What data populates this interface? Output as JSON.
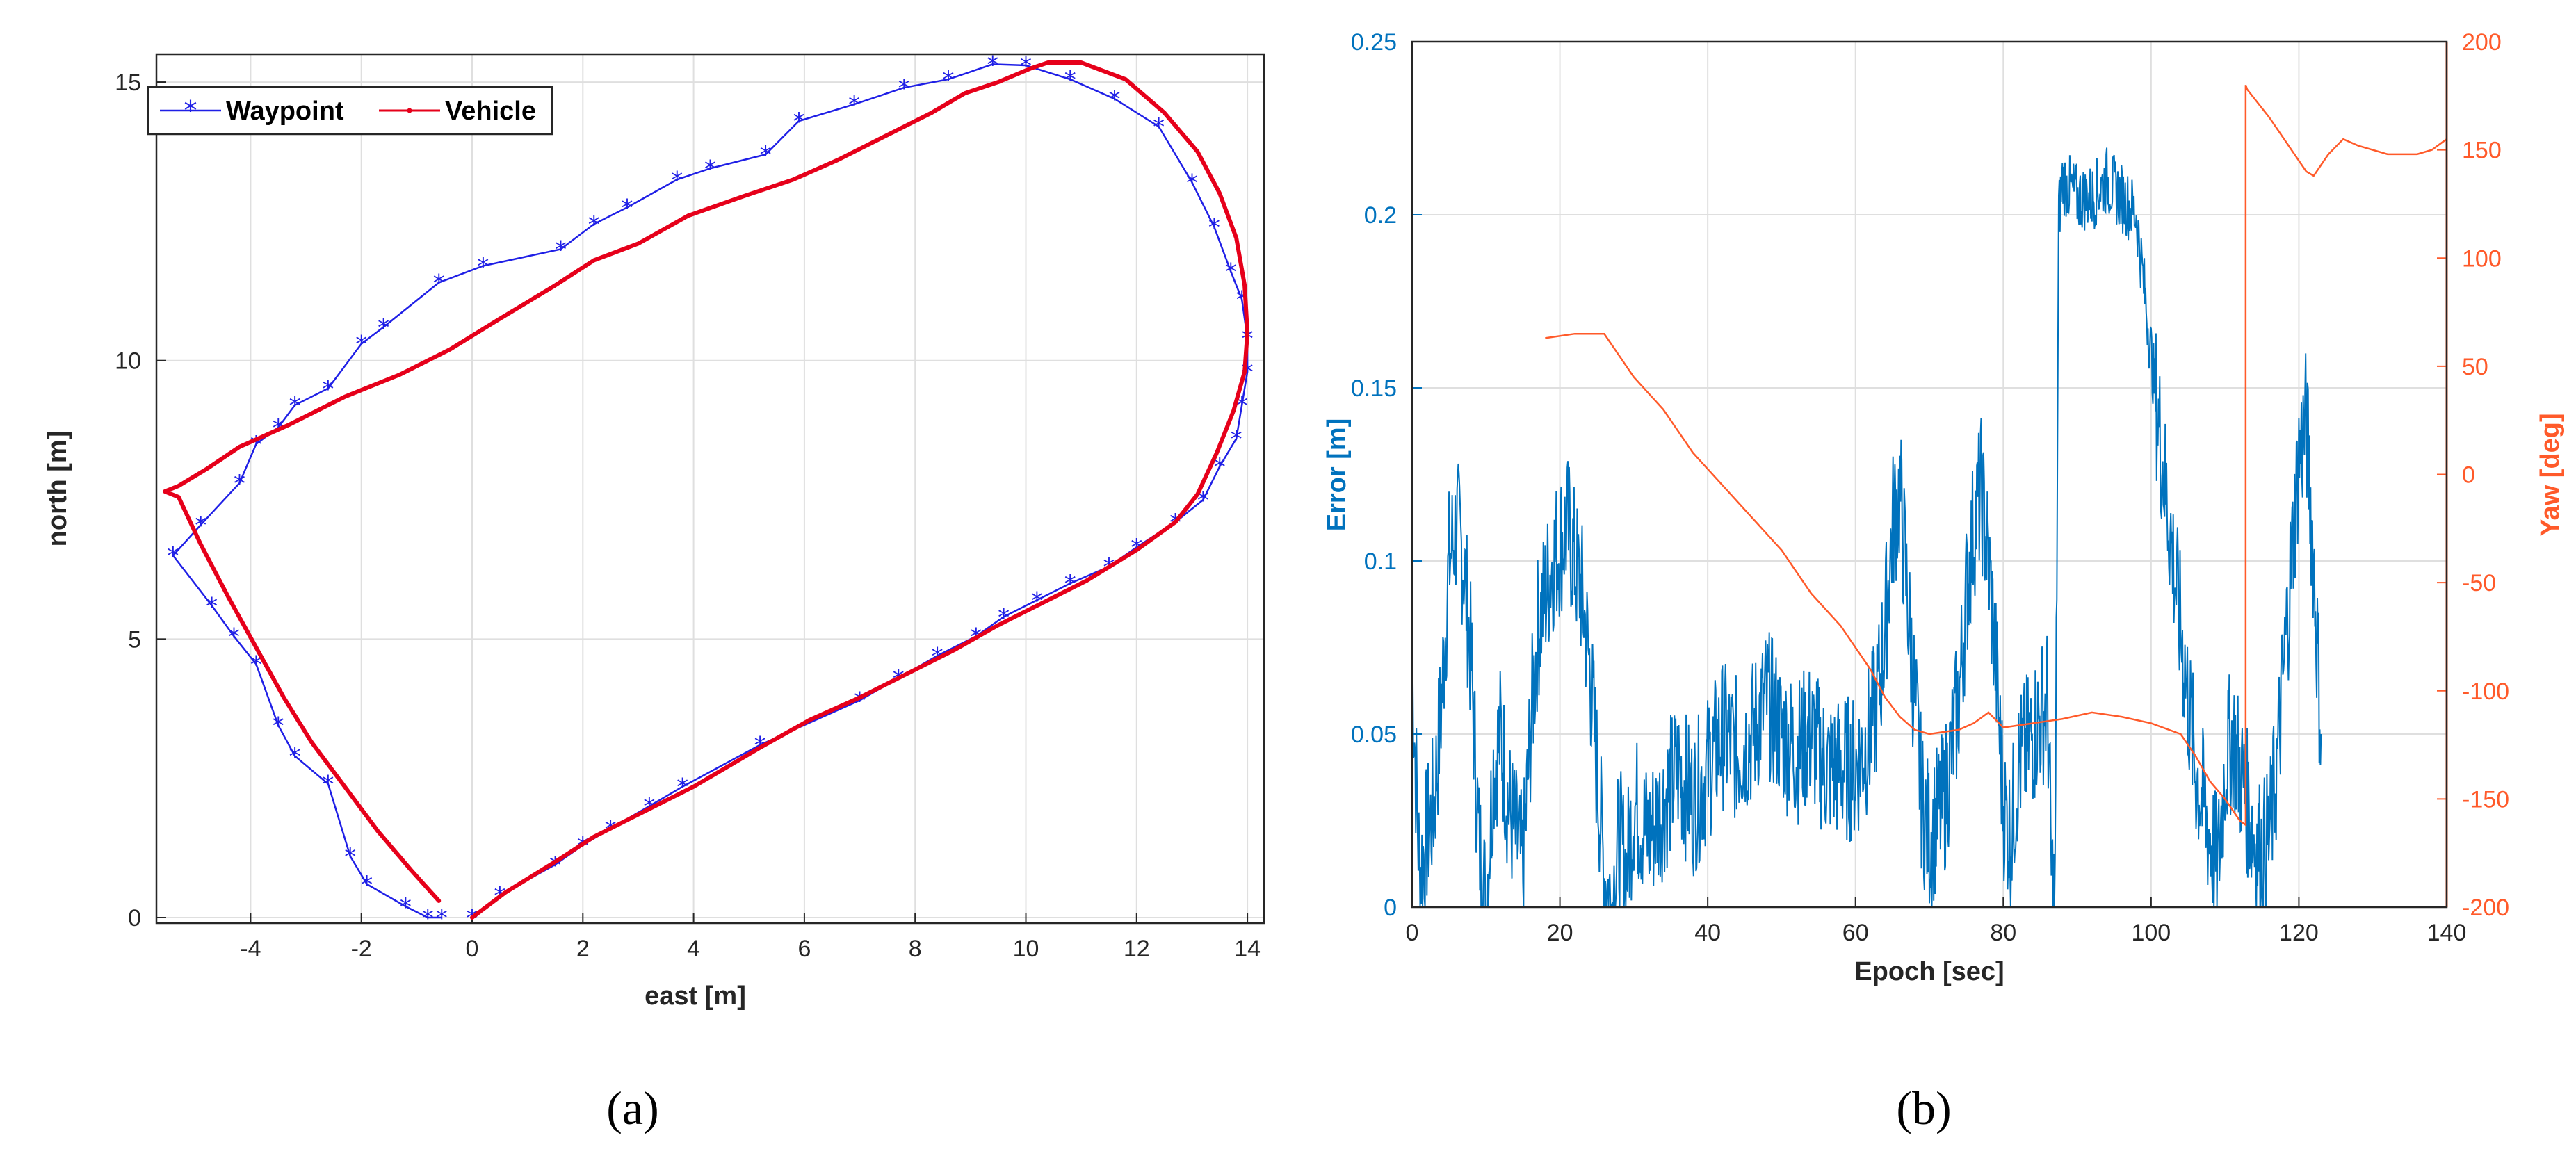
{
  "chart_data": [
    {
      "type": "line",
      "panel": "a",
      "caption": "(a)",
      "xlabel": "east [m]",
      "ylabel": "north [m]",
      "xlim": [
        -5.7,
        14.3
      ],
      "ylim": [
        -0.1,
        15.5
      ],
      "xticks": [
        -4,
        -2,
        0,
        2,
        4,
        6,
        8,
        10,
        12,
        14
      ],
      "yticks": [
        0,
        5,
        10,
        15
      ],
      "grid": true,
      "legend": {
        "placement": "top-left",
        "entries": [
          "Waypoint",
          "Vehicle"
        ]
      },
      "colors": {
        "waypoint": "#1f1fe6",
        "vehicle": "#e6001a"
      },
      "series": [
        {
          "name": "Waypoint",
          "x": [
            0.0,
            0.5,
            1.5,
            2.0,
            2.5,
            3.2,
            3.8,
            5.2,
            7.0,
            7.7,
            8.4,
            9.1,
            9.6,
            10.2,
            10.8,
            11.5,
            12.0,
            12.7,
            13.2,
            13.5,
            13.8,
            13.9,
            14.0,
            14.0,
            13.9,
            13.7,
            13.4,
            13.0,
            12.4,
            11.6,
            10.8,
            10.0,
            9.4,
            8.6,
            7.8,
            6.9,
            5.9,
            5.3,
            4.3,
            3.7,
            2.8,
            2.2,
            1.6,
            0.2,
            -0.6,
            -1.6,
            -2.0,
            -2.6,
            -3.2,
            -3.5,
            -3.9,
            -4.2,
            -4.9,
            -5.4,
            -4.7,
            -4.3,
            -3.9,
            -3.5,
            -3.2,
            -2.6,
            -2.2,
            -1.9,
            -1.2,
            -0.8,
            -0.55
          ],
          "y": [
            0.0,
            0.4,
            0.95,
            1.3,
            1.6,
            2.0,
            2.35,
            3.1,
            3.9,
            4.3,
            4.7,
            5.05,
            5.4,
            5.7,
            6.0,
            6.3,
            6.65,
            7.1,
            7.5,
            8.1,
            8.6,
            9.2,
            9.8,
            10.4,
            11.1,
            11.6,
            12.4,
            13.2,
            14.2,
            14.7,
            15.05,
            15.3,
            15.32,
            15.05,
            14.9,
            14.6,
            14.3,
            13.7,
            13.45,
            13.25,
            12.75,
            12.45,
            12.0,
            11.7,
            11.4,
            10.6,
            10.3,
            9.5,
            9.2,
            8.8,
            8.5,
            7.8,
            7.05,
            6.5,
            5.6,
            5.05,
            4.55,
            3.45,
            2.9,
            2.4,
            1.1,
            0.6,
            0.2,
            0.0,
            0.0
          ],
          "marker": "*"
        },
        {
          "name": "Vehicle",
          "x": [
            0.0,
            0.6,
            1.5,
            2.2,
            3.2,
            4.0,
            5.2,
            6.1,
            7.0,
            7.9,
            8.7,
            9.5,
            10.3,
            11.1,
            12.0,
            12.7,
            13.1,
            13.45,
            13.75,
            13.95,
            14.0,
            13.95,
            13.8,
            13.5,
            13.1,
            12.5,
            11.8,
            11.0,
            10.4,
            10.1,
            9.5,
            8.9,
            8.3,
            7.5,
            6.6,
            5.8,
            4.9,
            3.9,
            3.0,
            2.2,
            1.5,
            0.5,
            -0.4,
            -1.3,
            -2.3,
            -3.3,
            -4.2,
            -4.8,
            -5.3,
            -5.55,
            -5.3,
            -4.9,
            -4.4,
            -3.9,
            -3.4,
            -2.9,
            -2.3,
            -1.7,
            -1.1,
            -0.6
          ],
          "y": [
            0.0,
            0.45,
            1.0,
            1.45,
            1.95,
            2.35,
            3.05,
            3.55,
            3.95,
            4.4,
            4.8,
            5.25,
            5.65,
            6.05,
            6.6,
            7.1,
            7.6,
            8.35,
            9.1,
            9.8,
            10.5,
            11.35,
            12.2,
            13.0,
            13.75,
            14.45,
            15.05,
            15.35,
            15.35,
            15.25,
            15.0,
            14.8,
            14.45,
            14.05,
            13.6,
            13.25,
            12.95,
            12.6,
            12.1,
            11.8,
            11.35,
            10.75,
            10.2,
            9.75,
            9.35,
            8.85,
            8.45,
            8.05,
            7.75,
            7.65,
            7.55,
            6.7,
            5.75,
            4.85,
            3.95,
            3.15,
            2.35,
            1.55,
            0.85,
            0.3
          ],
          "marker": "."
        }
      ]
    },
    {
      "type": "line",
      "panel": "b",
      "caption": "(b)",
      "xlabel": "Epoch [sec]",
      "ylabel": "Error [m]",
      "ylabel_right": "Yaw [deg]",
      "xlim": [
        0,
        140
      ],
      "ylim": [
        0,
        0.25
      ],
      "ylim_right": [
        -200,
        200
      ],
      "xticks": [
        0,
        20,
        40,
        60,
        80,
        100,
        120,
        140
      ],
      "yticks": [
        "0",
        "0.05",
        "0.1",
        "0.15",
        "0.2",
        "0.25"
      ],
      "yticks_right": [
        -200,
        -150,
        -100,
        -50,
        0,
        50,
        100,
        150,
        200
      ],
      "grid": true,
      "colors": {
        "error": "#0072bd",
        "yaw": "#ff5a2a"
      },
      "series": [
        {
          "name": "Error [m]",
          "axis": "left",
          "x": [
            0,
            1,
            2,
            3,
            4,
            5,
            6,
            7,
            8,
            9,
            10,
            11,
            12,
            13,
            14,
            15,
            16,
            17,
            18,
            19,
            20,
            21,
            22,
            23,
            24,
            25,
            26,
            27,
            28,
            29,
            30,
            32,
            34,
            36,
            38,
            40,
            42,
            44,
            46,
            48,
            50,
            52,
            54,
            56,
            58,
            60,
            62,
            63,
            64,
            65,
            66,
            67,
            68,
            69,
            70,
            72,
            74,
            75,
            76,
            77,
            78,
            79,
            80,
            81,
            82,
            84,
            86,
            86.5,
            87,
            87.5,
            88,
            90,
            92,
            94,
            96,
            98,
            99,
            100,
            101,
            102,
            103,
            104,
            105,
            106,
            107,
            108,
            109,
            110,
            111,
            112,
            113,
            114,
            115,
            116,
            117,
            118,
            119,
            120,
            121,
            122,
            123
          ],
          "values": [
            0.07,
            0.01,
            0.02,
            0.03,
            0.06,
            0.1,
            0.11,
            0.1,
            0.07,
            0.02,
            0.0,
            0.04,
            0.05,
            0.03,
            0.02,
            0.01,
            0.05,
            0.08,
            0.09,
            0.1,
            0.105,
            0.11,
            0.1,
            0.09,
            0.07,
            0.04,
            0.01,
            0.0,
            0.02,
            0.01,
            0.03,
            0.02,
            0.03,
            0.04,
            0.03,
            0.04,
            0.05,
            0.045,
            0.05,
            0.06,
            0.05,
            0.045,
            0.05,
            0.04,
            0.04,
            0.04,
            0.05,
            0.06,
            0.08,
            0.11,
            0.12,
            0.09,
            0.06,
            0.03,
            0.02,
            0.03,
            0.06,
            0.09,
            0.11,
            0.12,
            0.1,
            0.07,
            0.03,
            0.02,
            0.04,
            0.05,
            0.06,
            0.01,
            0.0,
            0.2,
            0.21,
            0.205,
            0.205,
            0.21,
            0.205,
            0.2,
            0.18,
            0.16,
            0.14,
            0.12,
            0.1,
            0.08,
            0.06,
            0.04,
            0.03,
            0.02,
            0.01,
            0.04,
            0.05,
            0.04,
            0.03,
            0.02,
            0.015,
            0.02,
            0.04,
            0.07,
            0.1,
            0.13,
            0.14,
            0.1,
            0.05
          ]
        },
        {
          "name": "Yaw [deg]",
          "axis": "right",
          "x": [
            18,
            22,
            26,
            28,
            30,
            34,
            38,
            42,
            46,
            50,
            54,
            58,
            62,
            64,
            66,
            68,
            70,
            72,
            74,
            76,
            78,
            80,
            84,
            88,
            92,
            96,
            100,
            104,
            106,
            108,
            110,
            112,
            112.8,
            112.8,
            113,
            116,
            118,
            120,
            121,
            122,
            124,
            126,
            128,
            132,
            136,
            138,
            140
          ],
          "values": [
            63,
            65,
            65,
            55,
            45,
            30,
            10,
            -5,
            -20,
            -35,
            -55,
            -70,
            -90,
            -103,
            -112,
            -118,
            -120,
            -119,
            -118,
            -115,
            -110,
            -117,
            -115,
            -113,
            -110,
            -112,
            -115,
            -120,
            -130,
            -142,
            -150,
            -160,
            -162,
            180,
            178,
            165,
            155,
            145,
            140,
            138,
            148,
            155,
            152,
            148,
            148,
            150,
            155
          ]
        }
      ]
    }
  ]
}
